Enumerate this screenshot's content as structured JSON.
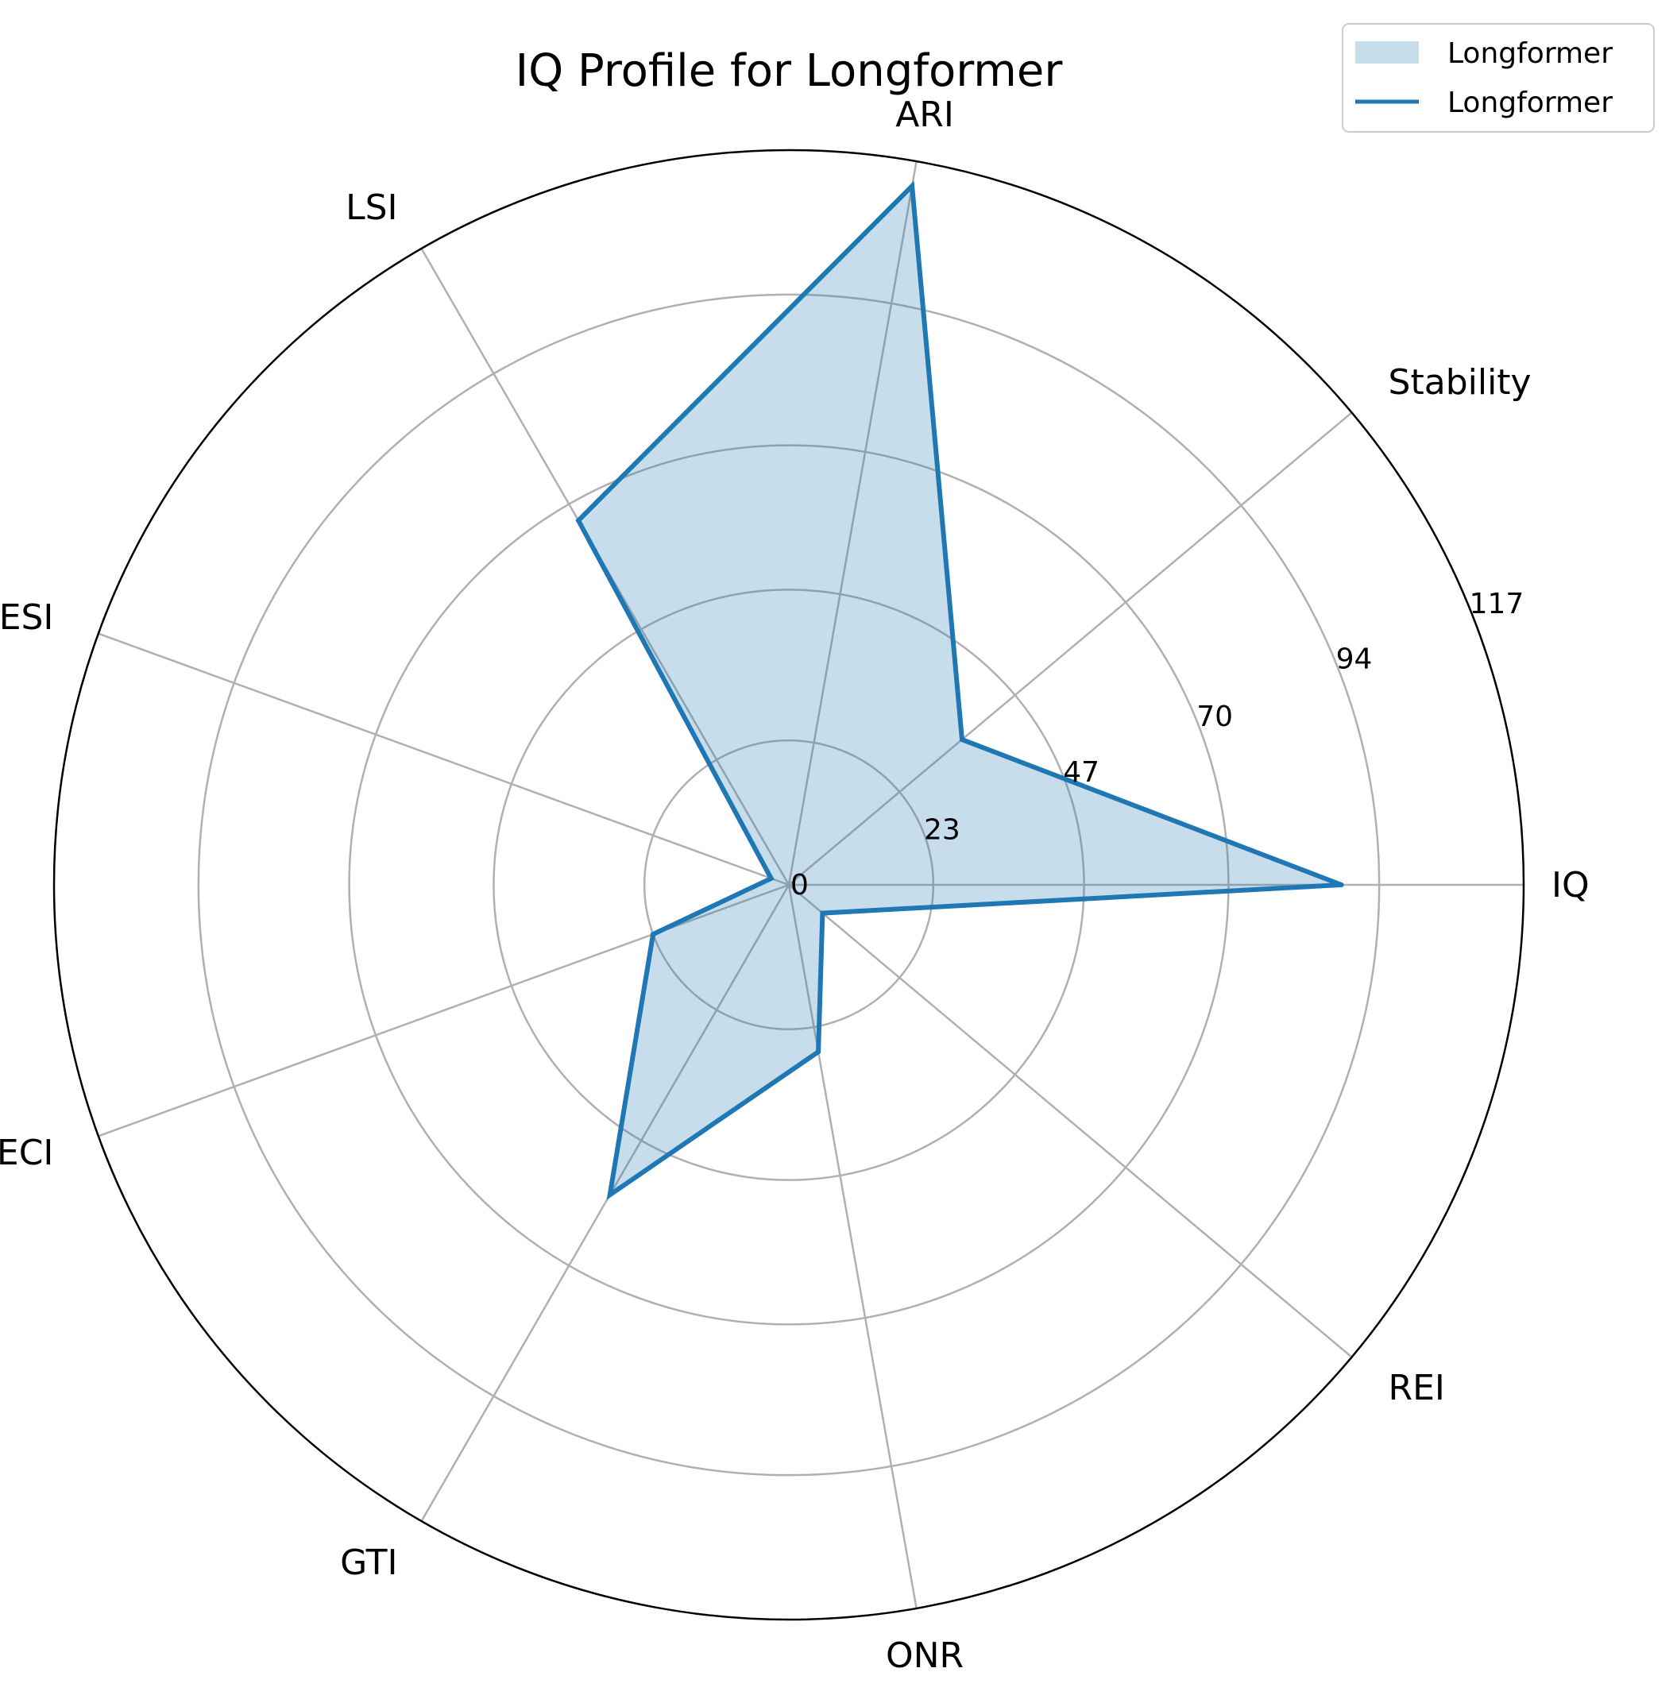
{
  "chart_data": {
    "type": "radar",
    "title": "IQ Profile for Longformer",
    "axes": [
      "IQ",
      "Stability",
      "ARI",
      "LSI",
      "ESI",
      "ECI",
      "GTI",
      "ONR",
      "REI"
    ],
    "series": [
      {
        "name": "Longformer",
        "values": [
          88,
          36,
          113,
          67,
          3,
          23,
          57,
          27,
          7
        ]
      }
    ],
    "radial_ticks": [
      0,
      23,
      47,
      70,
      94,
      117
    ],
    "radial_tick_labels": [
      "0",
      "23",
      "47",
      "70",
      "94",
      "117"
    ],
    "ylim": [
      0,
      117
    ],
    "grid": true,
    "legend": {
      "placement": "top-right",
      "entries": [
        {
          "label": "Longformer",
          "kind": "fill"
        },
        {
          "label": "Longformer",
          "kind": "line"
        }
      ]
    },
    "colors": {
      "line": "#1f77b4",
      "fill": "#1f77b4",
      "grid": "#b0b0b0",
      "frame": "#000000"
    }
  }
}
